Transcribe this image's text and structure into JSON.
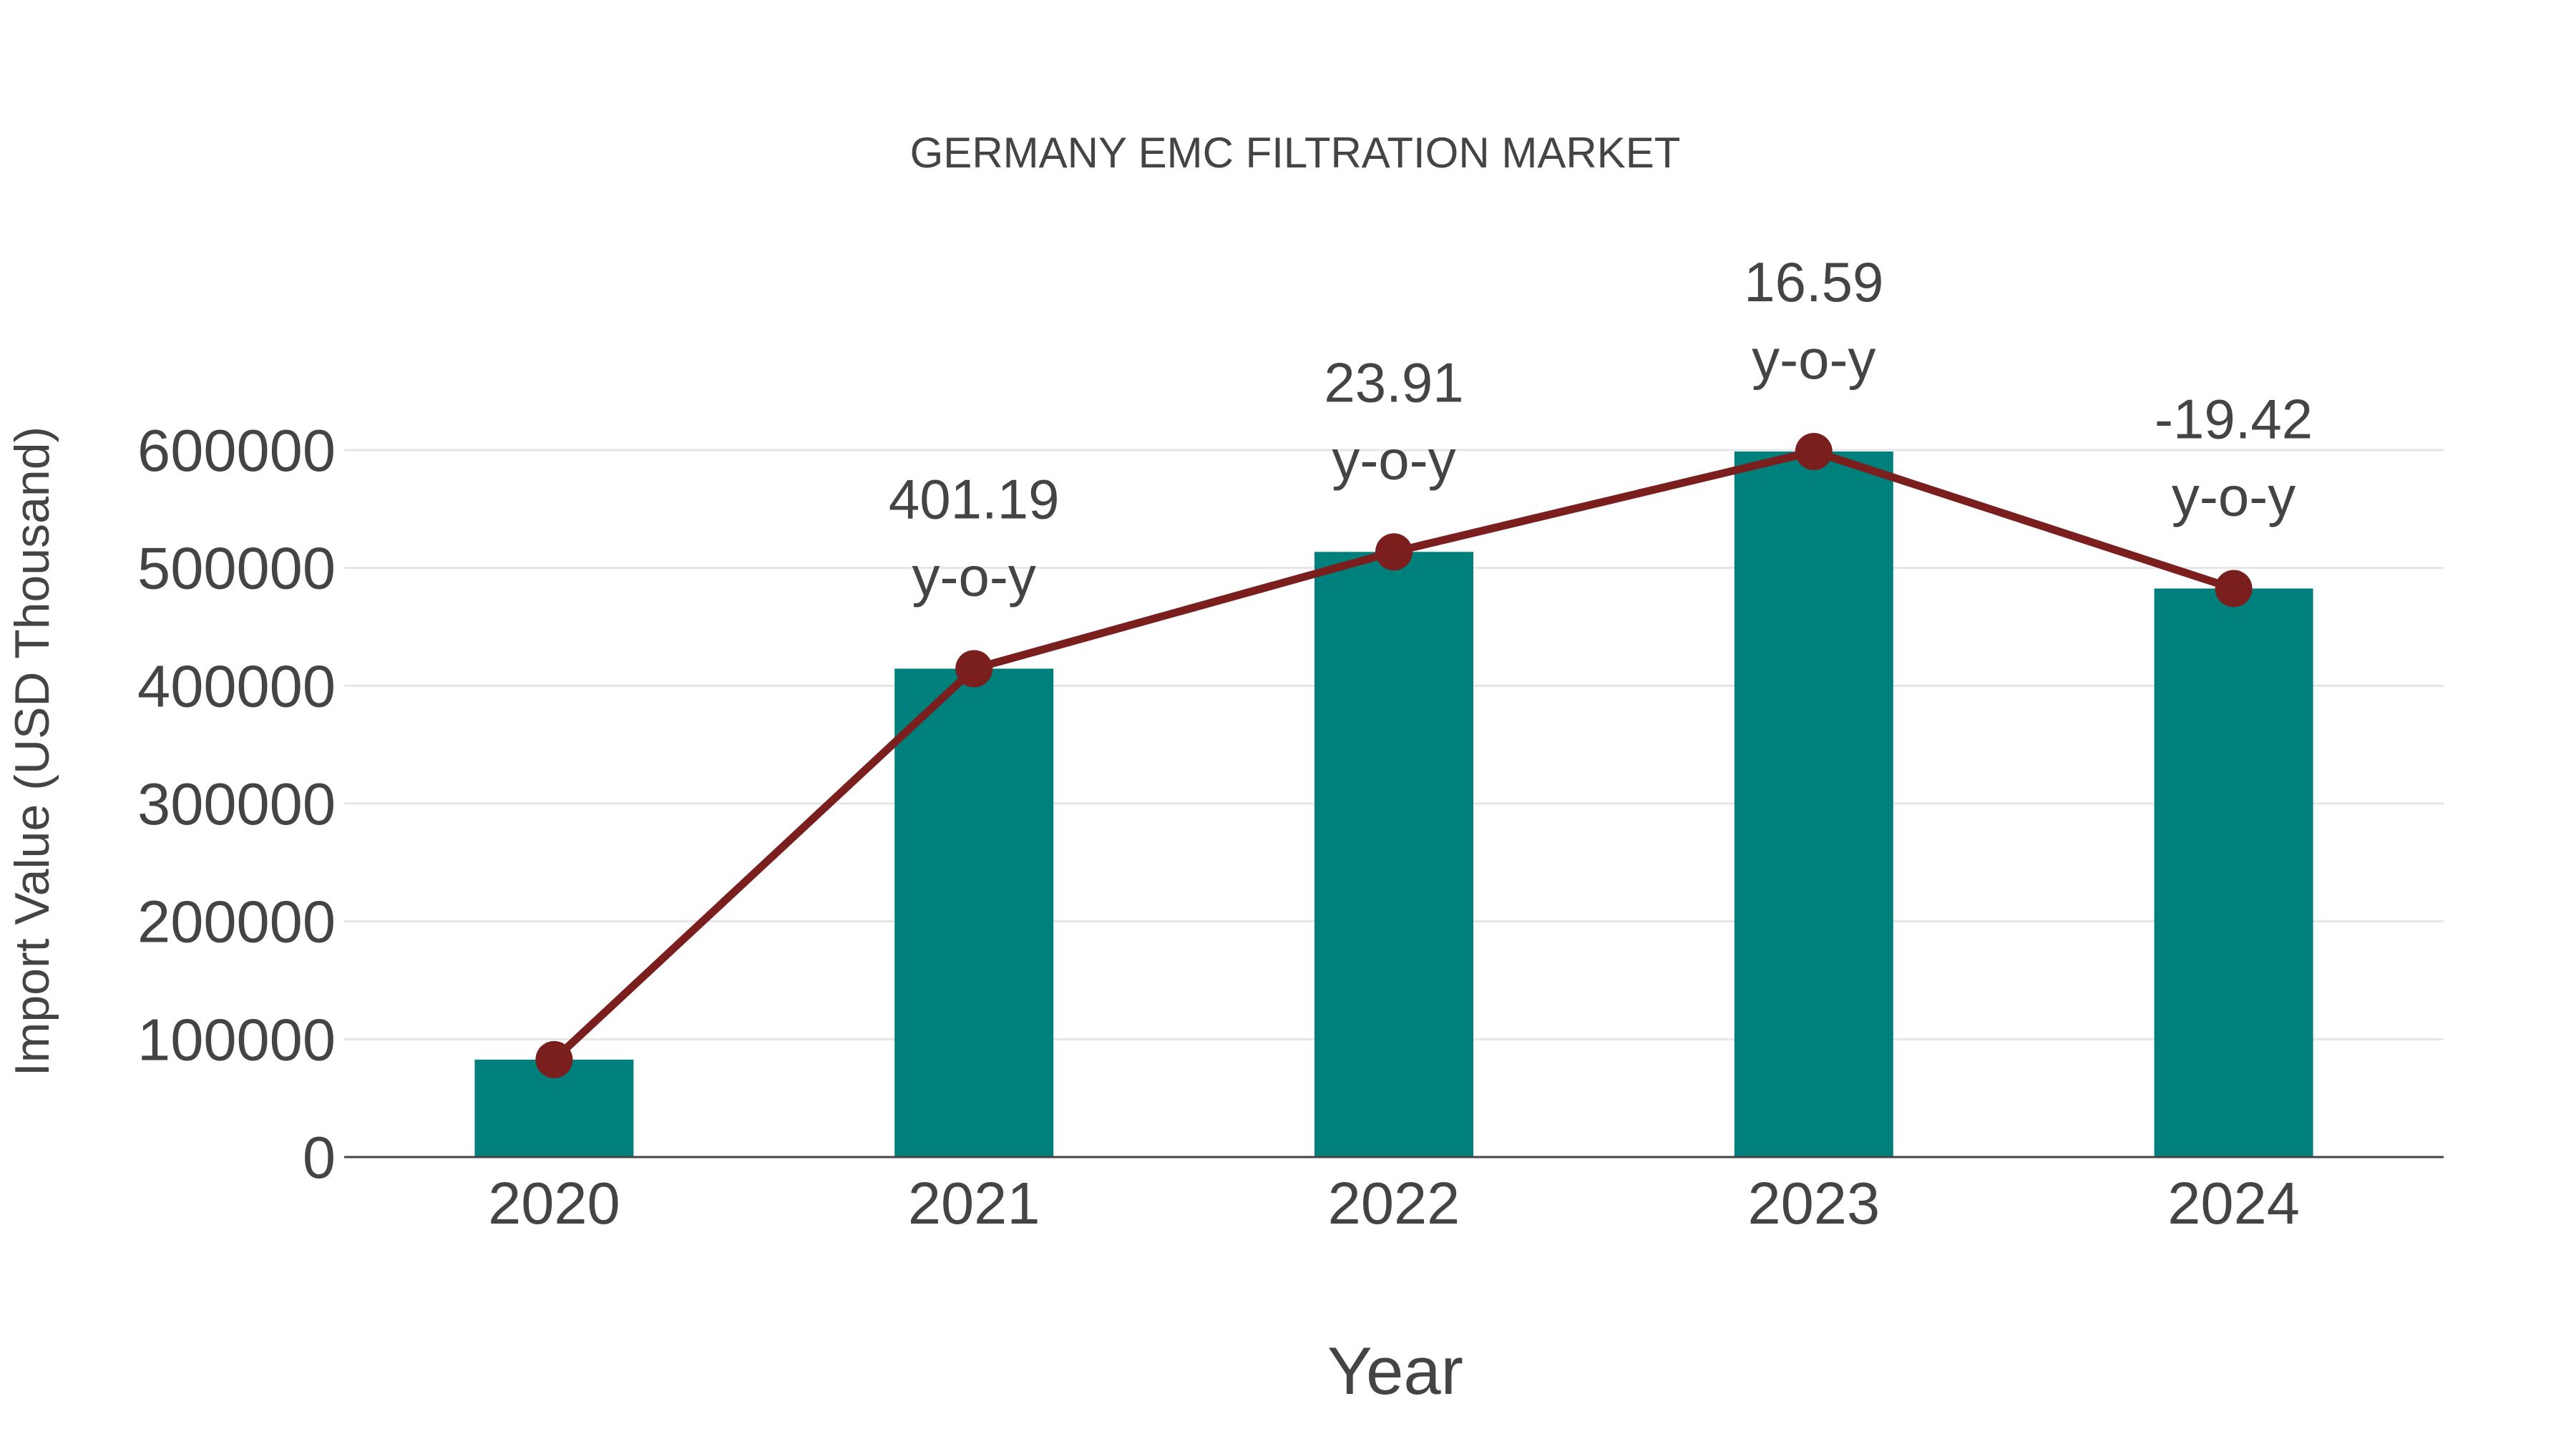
{
  "chart_data": {
    "type": "bar",
    "title": "GERMANY EMC FILTRATION MARKET",
    "xlabel": "Year",
    "ylabel": "Import Value (USD Thousand)",
    "categories": [
      "2020",
      "2021",
      "2022",
      "2023",
      "2024"
    ],
    "series": [
      {
        "name": "Import Value",
        "type": "bar",
        "color": "#00807C",
        "values": [
          82700,
          414500,
          513600,
          598800,
          482500
        ]
      },
      {
        "name": "Import Value trend",
        "type": "line",
        "color": "#7B1E1E",
        "values": [
          82700,
          414500,
          513600,
          598800,
          482500
        ]
      }
    ],
    "annotations": [
      {
        "category": "2021",
        "value": "401.19",
        "suffix": "y-o-y"
      },
      {
        "category": "2022",
        "value": "23.91",
        "suffix": "y-o-y"
      },
      {
        "category": "2023",
        "value": "16.59",
        "suffix": "y-o-y"
      },
      {
        "category": "2024",
        "value": "-19.42",
        "suffix": "y-o-y"
      }
    ],
    "yticks": [
      0,
      100000,
      200000,
      300000,
      400000,
      500000,
      600000
    ],
    "ylim": [
      0,
      600000
    ],
    "grid": true,
    "legend": "none"
  }
}
